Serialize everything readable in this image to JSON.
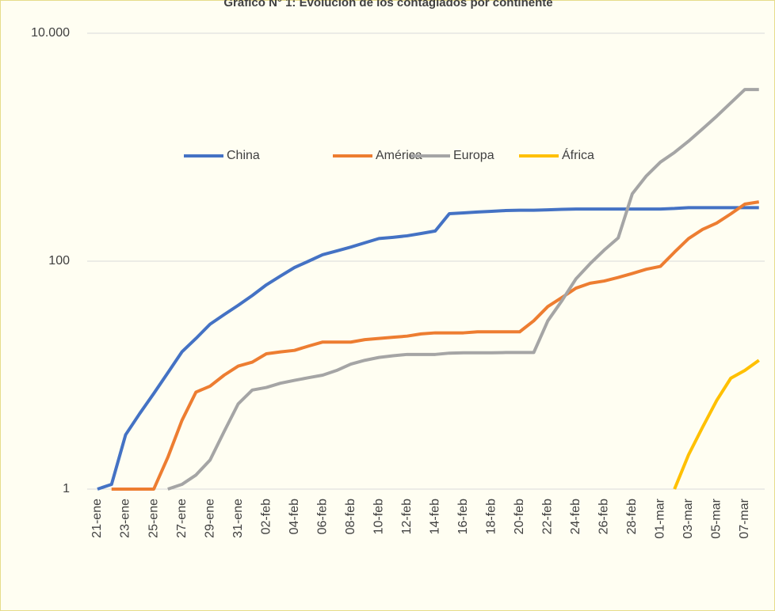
{
  "chart_data": {
    "type": "line",
    "title": "Gráfico N° 1: Evolución de los contagiados por continente",
    "categories": [
      "21-ene",
      null,
      "23-ene",
      null,
      "25-ene",
      null,
      "27-ene",
      null,
      "29-ene",
      null,
      "31-ene",
      null,
      "02-feb",
      null,
      "04-feb",
      null,
      "06-feb",
      null,
      "08-feb",
      null,
      "10-feb",
      null,
      "12-feb",
      null,
      "14-feb",
      null,
      "16-feb",
      null,
      "18-feb",
      null,
      "20-feb",
      null,
      "22-feb",
      null,
      "24-feb",
      null,
      "26-feb",
      null,
      "28-feb",
      null,
      "01-mar",
      null,
      "03-mar",
      null,
      "05-mar",
      null,
      "07-mar",
      null
    ],
    "series": [
      {
        "name": "China",
        "color": "#4472c4",
        "values": [
          1,
          1.1,
          3,
          4.6,
          6.9,
          10.5,
          16,
          21,
          28,
          34,
          41,
          50,
          62,
          74,
          88,
          100,
          114,
          123,
          133,
          145,
          158,
          162,
          167,
          175,
          184,
          261,
          265,
          270,
          274,
          278,
          280,
          280,
          282,
          285,
          287,
          287,
          287,
          287,
          287,
          287,
          287,
          290,
          295,
          295,
          295,
          295,
          295,
          295
        ]
      },
      {
        "name": "América",
        "color": "#ed7d31",
        "values": [
          null,
          1,
          1,
          1,
          1,
          1.9,
          4,
          7.1,
          8,
          10,
          12,
          13,
          15.4,
          16,
          16.5,
          18,
          19.5,
          19.5,
          19.5,
          20.5,
          21,
          21.5,
          22,
          23,
          23.5,
          23.5,
          23.5,
          24,
          24,
          24,
          24,
          30,
          40,
          48,
          58,
          64,
          67,
          72,
          78,
          85,
          90,
          120,
          158,
          190,
          216,
          260,
          317,
          331
        ]
      },
      {
        "name": "Europa",
        "color": "#a5a5a5",
        "values": [
          null,
          null,
          null,
          null,
          null,
          1,
          1.1,
          1.33,
          1.8,
          3.2,
          5.6,
          7.4,
          7.8,
          8.5,
          9,
          9.5,
          10,
          11,
          12.5,
          13.5,
          14.3,
          14.8,
          15.2,
          15.2,
          15.2,
          15.6,
          15.7,
          15.7,
          15.7,
          15.8,
          15.8,
          15.8,
          30,
          45,
          70,
          95,
          125,
          160,
          390,
          560,
          740,
          900,
          1130,
          1450,
          1870,
          2450,
          3210,
          3210
        ]
      },
      {
        "name": "África",
        "color": "#ffc000",
        "values": [
          null,
          null,
          null,
          null,
          null,
          null,
          null,
          null,
          null,
          null,
          null,
          null,
          null,
          null,
          null,
          null,
          null,
          null,
          null,
          null,
          null,
          null,
          null,
          null,
          null,
          null,
          null,
          null,
          null,
          null,
          null,
          null,
          null,
          null,
          null,
          null,
          null,
          null,
          null,
          null,
          null,
          1,
          2,
          3.5,
          6,
          9.4,
          11,
          13.5
        ]
      }
    ],
    "ylim": [
      1,
      10000
    ],
    "log_y": true,
    "yticks": [
      1,
      100,
      {
        "value": 10000,
        "label": "10.000"
      }
    ],
    "grid": true,
    "legend": "top"
  }
}
